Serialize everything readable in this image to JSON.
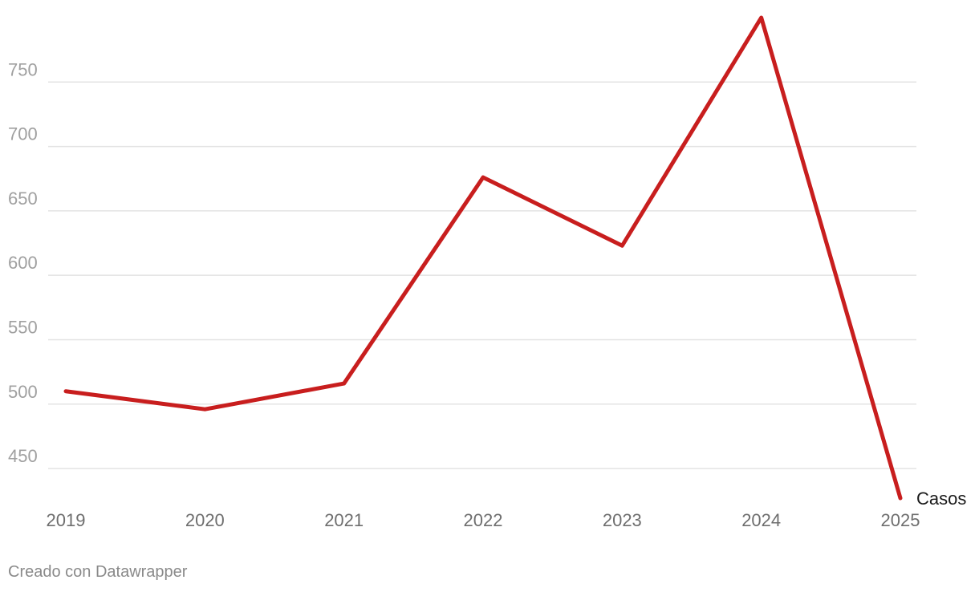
{
  "chart_data": {
    "type": "line",
    "x": [
      "2019",
      "2020",
      "2021",
      "2022",
      "2023",
      "2024",
      "2025"
    ],
    "series": [
      {
        "name": "Casos",
        "values": [
          510,
          496,
          516,
          676,
          623,
          800,
          427
        ],
        "color": "#c81e1e"
      }
    ],
    "yticks": [
      450,
      500,
      550,
      600,
      650,
      700,
      750
    ],
    "ylim": [
      427,
      800
    ],
    "grid": true,
    "series_label_position": "end-of-line"
  },
  "footer": {
    "credit": "Creado con Datawrapper"
  }
}
